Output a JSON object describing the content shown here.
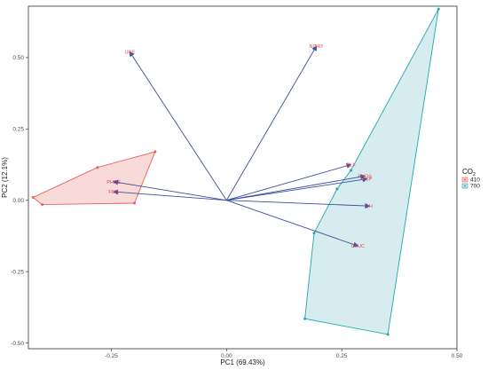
{
  "chart_data": {
    "type": "scatter",
    "subtype": "pca-biplot",
    "xlabel": "PC1 (69.43%)",
    "ylabel": "PC2 (12.1%)",
    "xlim": [
      -0.43,
      0.5
    ],
    "ylim": [
      -0.52,
      0.68
    ],
    "x_ticks": [
      -0.25,
      0,
      0.25,
      0.5
    ],
    "x_tick_labels": [
      "-0.25",
      "0.00",
      "0.25",
      "0.50"
    ],
    "y_ticks": [
      -0.5,
      -0.25,
      0,
      0.25,
      0.5
    ],
    "y_tick_labels": [
      "-0.50",
      "-0.25",
      "0.00",
      "0.25",
      "0.50"
    ],
    "grid": false,
    "legend": {
      "title": "CO",
      "title_subscript": "2",
      "placement": "right",
      "entries": [
        {
          "label": "410",
          "color": "#e8605e",
          "fill": "#f7d4d2"
        },
        {
          "label": "700",
          "color": "#1fa9aa",
          "fill": "#cfe9ec"
        }
      ]
    },
    "groups": [
      {
        "name": "410",
        "color": "#e8605e",
        "fill": "#f7d4d2",
        "hull": [
          [
            -0.42,
            0.01
          ],
          [
            -0.4,
            -0.015
          ],
          [
            -0.2,
            -0.01
          ],
          [
            -0.155,
            0.17
          ],
          [
            -0.28,
            0.115
          ]
        ]
      },
      {
        "name": "700",
        "color": "#1fa9aa",
        "fill": "#cfe9ec",
        "hull": [
          [
            0.46,
            0.67
          ],
          [
            0.35,
            -0.47
          ],
          [
            0.17,
            -0.415
          ],
          [
            0.19,
            -0.115
          ],
          [
            0.24,
            0.04
          ],
          [
            0.27,
            0.105
          ]
        ]
      }
    ],
    "arrow_color": "#3a4fa1",
    "loadings": [
      {
        "label": "URE",
        "x": -0.21,
        "y": 0.52
      },
      {
        "label": "NITRT",
        "x": 0.195,
        "y": 0.54
      },
      {
        "label": "PHOS",
        "x": -0.245,
        "y": 0.065
      },
      {
        "label": "FOS",
        "x": -0.245,
        "y": 0.03
      },
      {
        "label": "BLX",
        "x": 0.27,
        "y": 0.125
      },
      {
        "label": "PHOS",
        "x": 0.3,
        "y": 0.085
      },
      {
        "label": "ACP",
        "x": 0.305,
        "y": 0.075
      },
      {
        "label": "pH",
        "x": 0.31,
        "y": -0.02
      },
      {
        "label": "GLUC",
        "x": 0.285,
        "y": -0.16
      }
    ]
  }
}
